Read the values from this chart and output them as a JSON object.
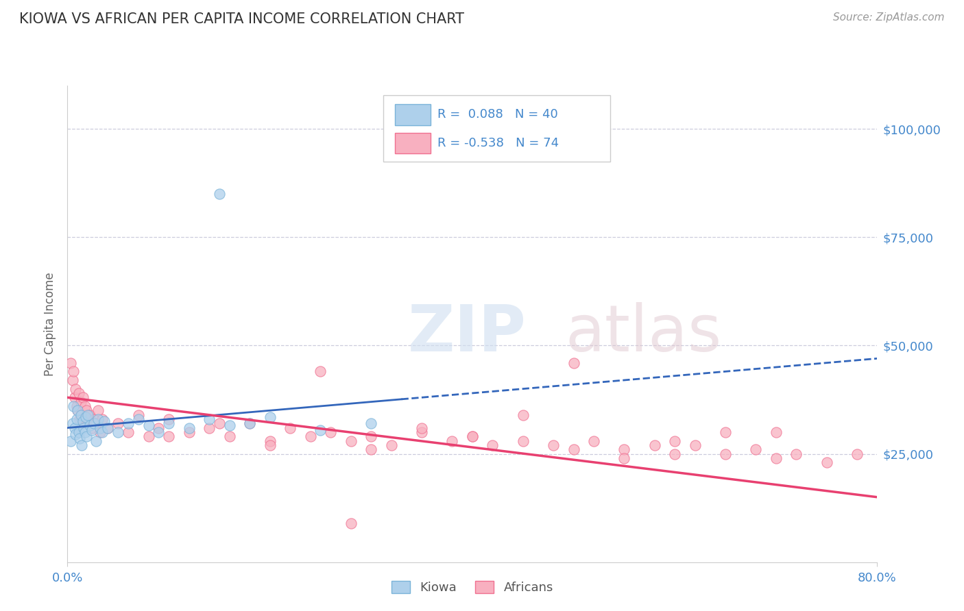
{
  "title": "KIOWA VS AFRICAN PER CAPITA INCOME CORRELATION CHART",
  "source_text": "Source: ZipAtlas.com",
  "ylabel": "Per Capita Income",
  "watermark_zip": "ZIP",
  "watermark_atlas": "atlas",
  "xlim": [
    0.0,
    0.8
  ],
  "ylim": [
    0,
    110000
  ],
  "yticks": [
    0,
    25000,
    50000,
    75000,
    100000
  ],
  "ytick_labels": [
    "",
    "$25,000",
    "$50,000",
    "$75,000",
    "$100,000"
  ],
  "xtick_labels": [
    "0.0%",
    "80.0%"
  ],
  "kiowa_color": "#7ab3d9",
  "kiowa_color_fill": "#aed0eb",
  "african_color": "#f07090",
  "african_color_fill": "#f8b0c0",
  "trend_color_kiowa": "#3366bb",
  "trend_color_african": "#e84070",
  "title_color": "#333333",
  "axis_label_color": "#666666",
  "tick_label_color": "#4488cc",
  "grid_color": "#ccccdd",
  "legend_r_kiowa": "0.088",
  "legend_n_kiowa": "40",
  "legend_r_african": "-0.538",
  "legend_n_african": "74",
  "kiowa_label": "Kiowa",
  "african_label": "Africans",
  "kiowa_x": [
    0.003,
    0.005,
    0.006,
    0.007,
    0.008,
    0.009,
    0.01,
    0.011,
    0.012,
    0.013,
    0.014,
    0.015,
    0.016,
    0.017,
    0.018,
    0.019,
    0.02,
    0.022,
    0.024,
    0.026,
    0.028,
    0.03,
    0.032,
    0.034,
    0.036,
    0.04,
    0.05,
    0.06,
    0.07,
    0.08,
    0.09,
    0.1,
    0.12,
    0.14,
    0.16,
    0.18,
    0.2,
    0.25,
    0.3,
    0.15
  ],
  "kiowa_y": [
    28000,
    32000,
    36000,
    31000,
    29500,
    33000,
    35000,
    30000,
    28500,
    34000,
    27000,
    32500,
    31000,
    30000,
    33500,
    29000,
    34000,
    31500,
    30500,
    32000,
    28000,
    33000,
    31000,
    30000,
    32500,
    31000,
    30000,
    32000,
    33000,
    31500,
    30000,
    32000,
    31000,
    33000,
    31500,
    32000,
    33500,
    30500,
    32000,
    85000
  ],
  "african_x": [
    0.003,
    0.005,
    0.006,
    0.007,
    0.008,
    0.009,
    0.01,
    0.011,
    0.012,
    0.013,
    0.014,
    0.015,
    0.016,
    0.017,
    0.018,
    0.019,
    0.02,
    0.022,
    0.024,
    0.026,
    0.028,
    0.03,
    0.032,
    0.034,
    0.04,
    0.05,
    0.06,
    0.07,
    0.08,
    0.09,
    0.1,
    0.12,
    0.14,
    0.16,
    0.18,
    0.2,
    0.22,
    0.24,
    0.26,
    0.28,
    0.3,
    0.32,
    0.35,
    0.38,
    0.4,
    0.42,
    0.45,
    0.48,
    0.5,
    0.52,
    0.55,
    0.58,
    0.6,
    0.62,
    0.65,
    0.68,
    0.7,
    0.72,
    0.75,
    0.78,
    0.25,
    0.35,
    0.45,
    0.3,
    0.4,
    0.5,
    0.6,
    0.7,
    0.2,
    0.55,
    0.15,
    0.1,
    0.28,
    0.65
  ],
  "african_y": [
    46000,
    42000,
    44000,
    38000,
    40000,
    36000,
    35000,
    39000,
    33000,
    37000,
    34000,
    38000,
    32000,
    36000,
    33000,
    35000,
    32000,
    34000,
    31000,
    33000,
    32000,
    35000,
    30000,
    33000,
    31000,
    32000,
    30000,
    34000,
    29000,
    31000,
    33000,
    30000,
    31000,
    29000,
    32000,
    28000,
    31000,
    29000,
    30000,
    28000,
    29000,
    27000,
    30000,
    28000,
    29000,
    27000,
    28000,
    27000,
    26000,
    28000,
    26000,
    27000,
    25000,
    27000,
    25000,
    26000,
    24000,
    25000,
    23000,
    25000,
    44000,
    31000,
    34000,
    26000,
    29000,
    46000,
    28000,
    30000,
    27000,
    24000,
    32000,
    29000,
    9000,
    30000
  ]
}
